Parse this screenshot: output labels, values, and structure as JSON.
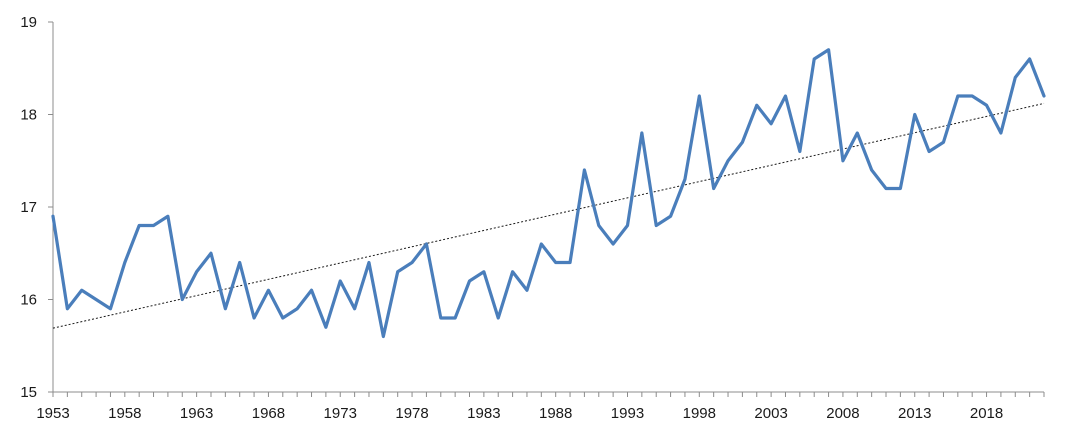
{
  "chart_data": {
    "type": "line",
    "title": "",
    "xlabel": "",
    "ylabel": "",
    "ylim": [
      15,
      19
    ],
    "xlim": [
      1953,
      2022
    ],
    "y_ticks": [
      15,
      16,
      17,
      18,
      19
    ],
    "x_tick_labels": [
      1953,
      1958,
      1963,
      1968,
      1973,
      1978,
      1983,
      1988,
      1993,
      1998,
      2003,
      2008,
      2013,
      2018
    ],
    "grid": false,
    "legend": "none",
    "series": [
      {
        "color": "#4a7ebb",
        "x": [
          1953,
          1954,
          1955,
          1956,
          1957,
          1958,
          1959,
          1960,
          1961,
          1962,
          1963,
          1964,
          1965,
          1966,
          1967,
          1968,
          1969,
          1970,
          1971,
          1972,
          1973,
          1974,
          1975,
          1976,
          1977,
          1978,
          1979,
          1980,
          1981,
          1982,
          1983,
          1984,
          1985,
          1986,
          1987,
          1988,
          1989,
          1990,
          1991,
          1992,
          1993,
          1994,
          1995,
          1996,
          1997,
          1998,
          1999,
          2000,
          2001,
          2002,
          2003,
          2004,
          2005,
          2006,
          2007,
          2008,
          2009,
          2010,
          2011,
          2012,
          2013,
          2014,
          2015,
          2016,
          2017,
          2018,
          2019,
          2020,
          2021,
          2022
        ],
        "values": [
          16.9,
          15.9,
          16.1,
          16.0,
          15.9,
          16.4,
          16.8,
          16.8,
          16.9,
          16.0,
          16.3,
          16.5,
          15.9,
          16.4,
          15.8,
          16.1,
          15.8,
          15.9,
          16.1,
          15.7,
          16.2,
          15.9,
          16.4,
          15.6,
          16.3,
          16.4,
          16.6,
          15.8,
          15.8,
          16.2,
          16.3,
          15.8,
          16.3,
          16.1,
          16.6,
          16.4,
          16.4,
          17.4,
          16.8,
          16.6,
          16.8,
          17.8,
          16.8,
          16.9,
          17.3,
          18.2,
          17.2,
          17.5,
          17.7,
          18.1,
          17.9,
          18.2,
          17.6,
          18.6,
          18.7,
          17.5,
          17.8,
          17.4,
          17.2,
          17.2,
          18.0,
          17.6,
          17.7,
          18.2,
          18.2,
          18.1,
          17.8,
          18.4,
          18.6,
          18.2
        ]
      }
    ],
    "trendline": {
      "type": "linear",
      "color": "#1a1a1a",
      "style": "dotted",
      "x": [
        1953,
        2022
      ],
      "values": [
        15.69,
        18.12
      ]
    }
  }
}
